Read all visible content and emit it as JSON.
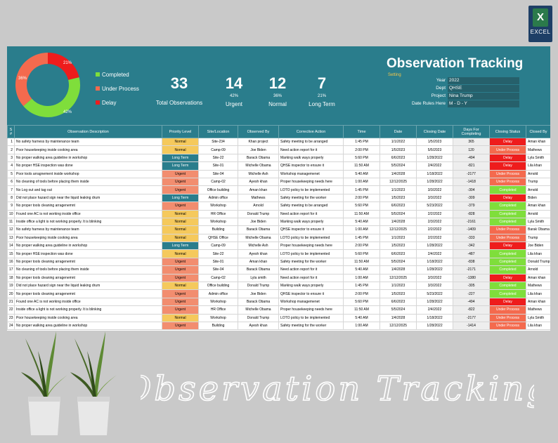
{
  "badge": {
    "label": "EXCEL"
  },
  "donut": {
    "completed_pct": 42,
    "under_pct": 36,
    "delay_pct": 21,
    "completed_label": "42%",
    "under_label": "36%",
    "delay_label": "21%",
    "colors": {
      "completed": "#7fde3b",
      "under": "#f46a4e",
      "delay": "#ee1c1c"
    }
  },
  "legend": {
    "completed": "Completed",
    "under": "Under Process",
    "delay": "Delay"
  },
  "kpis": {
    "total": {
      "value": "33",
      "label": "Total Observations"
    },
    "urgent": {
      "value": "14",
      "pct": "42%",
      "label": "Urgent"
    },
    "normal": {
      "value": "12",
      "pct": "36%",
      "label": "Normal"
    },
    "long": {
      "value": "7",
      "pct": "21%",
      "label": "Long Term"
    }
  },
  "title": "Observation Tracking",
  "setting": "Setting",
  "meta": {
    "year_k": "Year",
    "year_v": "2022",
    "dept_k": "Dept",
    "dept_v": "QHSE",
    "project_k": "Project",
    "project_v": "Nina Trump",
    "rules_k": "Date Rules Here",
    "rules_v": "M - D - Y"
  },
  "columns": [
    "S #",
    "Observation Description",
    "Priority Level",
    "Site/Location",
    "Observed By",
    "Corrective Action",
    "Time",
    "Date",
    "Closing Date",
    "Days For Completing",
    "Closing Status",
    "Closed By"
  ],
  "rows": [
    [
      "1",
      "No safety harness by maintenance team",
      "Normal",
      "Site-234",
      "Khan project",
      "Safety meeting to be arranged",
      "1:45 PM",
      "1/1/2022",
      "1/5/2023",
      "365",
      "Delay",
      "Aman khan"
    ],
    [
      "2",
      "Poor housekeeping inside cooking area",
      "Normal",
      "Camp-09",
      "Joe Biden",
      "Need action report for it",
      "2:00 PM",
      "1/5/2023",
      "5/5/2023",
      "120",
      "Under Process",
      "Mathews"
    ],
    [
      "3",
      "No proper walking area guideline in workshop",
      "Long Term",
      "Site-22",
      "Barack Obama",
      "Marking walk ways properly",
      "5:60 PM",
      "6/6/2023",
      "1/28/2022",
      "-494",
      "Delay",
      "Lyla Smith"
    ],
    [
      "4",
      "No proper HSE inspection was done",
      "Long Term",
      "Site-01",
      "Michelle Obama",
      "QHSE inspector to ensure it",
      "11:50 AM",
      "5/5/2024",
      "2/4/2022",
      "-821",
      "Delay",
      "Lila khan"
    ],
    [
      "5",
      "Poor tools arragnement inside workshop",
      "Urgent",
      "Site-04",
      "Michelle Ash",
      "Workshop managemenet",
      "5:40 AM",
      "1/4/2028",
      "1/18/2022",
      "-2177",
      "Under Process",
      "Arnold"
    ],
    [
      "6",
      "No cleaning of tools before placing them inside",
      "Urgent",
      "Camp-02",
      "Ayesh khan",
      "Proper housekeeping needs here",
      "1:00 AM",
      "12/12/2025",
      "1/28/2022",
      "-1418",
      "Under Process",
      "Trump"
    ],
    [
      "7",
      "No Log out and tag out",
      "Urgent",
      "Office building",
      "Aman khan",
      "LOTO policy to be implemented",
      "1:45 PM",
      "1/1/2023",
      "3/3/2022",
      "-304",
      "Completed",
      "Arnold"
    ],
    [
      "8",
      "Did not place hazard sign near the liquid leaking drum",
      "Long Term",
      "Admin office",
      "Mathews",
      "Safety meeting for the worker",
      "2:00 PM",
      "1/5/2023",
      "3/3/2022",
      "-309",
      "Delay",
      "Biden"
    ],
    [
      "9",
      "No proper tools cleaning arragenemnt",
      "Urgent",
      "Workshop",
      "Arnold",
      "Safety meeting to be arranged",
      "5:60 PM",
      "6/6/2023",
      "5/23/2022",
      "-379",
      "Completed",
      "Aman khan"
    ],
    [
      "10",
      "Found one AC is not working inside office",
      "Normal",
      "HR Office",
      "Donald Trump",
      "Need action report for it",
      "11:50 AM",
      "5/5/2024",
      "2/2/2022",
      "-828",
      "Completed",
      "Arnold"
    ],
    [
      "11",
      "Inside office a light is not working properly. It is blinking",
      "Normal",
      "Workshop",
      "Joe Biden",
      "Marking walk ways properly",
      "5:40 AM",
      "1/4/2028",
      "2/3/2022",
      "-2161",
      "Completed",
      "Lyla Smith"
    ],
    [
      "12",
      "No safety harness by maintenance team",
      "Normal",
      "Building",
      "Barack Obama",
      "QHSE inspector to ensure it",
      "1:00 AM",
      "12/12/2025",
      "2/2/2022",
      "-1409",
      "Under Process",
      "Barak Obama"
    ],
    [
      "13",
      "Poor housekeeping inside cooking area",
      "Normal",
      "QHSE Office",
      "Michelle Obama",
      "LOTO policy to be implemented",
      "1:45 PM",
      "1/1/2023",
      "2/2/2022",
      "-333",
      "Under Process",
      "Trump"
    ],
    [
      "14",
      "No proper walking area guideline in workshop",
      "Long Term",
      "Camp-09",
      "Michelle Ash",
      "Proper housekeeping needs here",
      "2:00 PM",
      "1/5/2023",
      "1/28/2022",
      "-342",
      "Delay",
      "Joe Biden"
    ],
    [
      "15",
      "No proper HSE inspection was done",
      "Normal",
      "Site-22",
      "Ayesh khan",
      "LOTO policy to be implemented",
      "5:60 PM",
      "6/6/2023",
      "2/4/2022",
      "-487",
      "Completed",
      "Lila khan"
    ],
    [
      "16",
      "No proper tools cleaning arragenemnt",
      "Urgent",
      "Site-01",
      "Aman khan",
      "Safety meeting for the worker",
      "11:50 AM",
      "5/5/2024",
      "1/18/2022",
      "-838",
      "Completed",
      "Donald Trump"
    ],
    [
      "17",
      "No cleaning of tools before placing them inside",
      "Urgent",
      "Site-04",
      "Barack Obama",
      "Need action report for it",
      "5:40 AM",
      "1/4/2028",
      "1/28/2022",
      "-2171",
      "Completed",
      "Arnold"
    ],
    [
      "18",
      "No proper tools cleaning arragenemnt",
      "Urgent",
      "Camp-02",
      "Lyla smith",
      "Need action report for it",
      "1:00 AM",
      "12/12/2025",
      "3/3/2022",
      "-1380",
      "Delay",
      "Aman khan"
    ],
    [
      "19",
      "Did not place hazard sign near the liquid leaking drum",
      "Normal",
      "Office building",
      "Donald Trump",
      "Marking walk ways properly",
      "1:45 PM",
      "1/1/2023",
      "3/3/2022",
      "-305",
      "Completed",
      "Mathews"
    ],
    [
      "20",
      "No proper tools cleaning arragenemnt",
      "Urgent",
      "Admin office",
      "Joe Biden",
      "QHSE inspector to ensure it",
      "2:00 PM",
      "1/5/2023",
      "5/23/2022",
      "-227",
      "Completed",
      "Lila khan"
    ],
    [
      "21",
      "Found one AC is not working inside office",
      "Urgent",
      "Workshop",
      "Barack Obama",
      "Workshop managemenet",
      "5:60 PM",
      "6/6/2023",
      "1/28/2022",
      "-494",
      "Delay",
      "Aman khan"
    ],
    [
      "22",
      "Inside office a light is not working properly. It is blinking",
      "Urgent",
      "HR Office",
      "Michelle Obama",
      "Proper housekeeping needs here",
      "11:50 AM",
      "5/5/2024",
      "2/4/2022",
      "-822",
      "Under Process",
      "Mathews"
    ],
    [
      "23",
      "Poor housekeeping inside cooking area",
      "Normal",
      "Workshop",
      "Donald Trump",
      "LOTO policy to be implemented",
      "5:40 AM",
      "1/4/2028",
      "1/18/2022",
      "-2177",
      "Under Process",
      "Lyla Smith"
    ],
    [
      "24",
      "No proper walking area guideline in workshop",
      "Urgent",
      "Building",
      "Ayesh khan",
      "Safety meeting for the worker",
      "1:00 AM",
      "12/12/2025",
      "1/28/2022",
      "-1414",
      "Under Process",
      "Lila khan"
    ]
  ],
  "banner": "Observation Tracking"
}
